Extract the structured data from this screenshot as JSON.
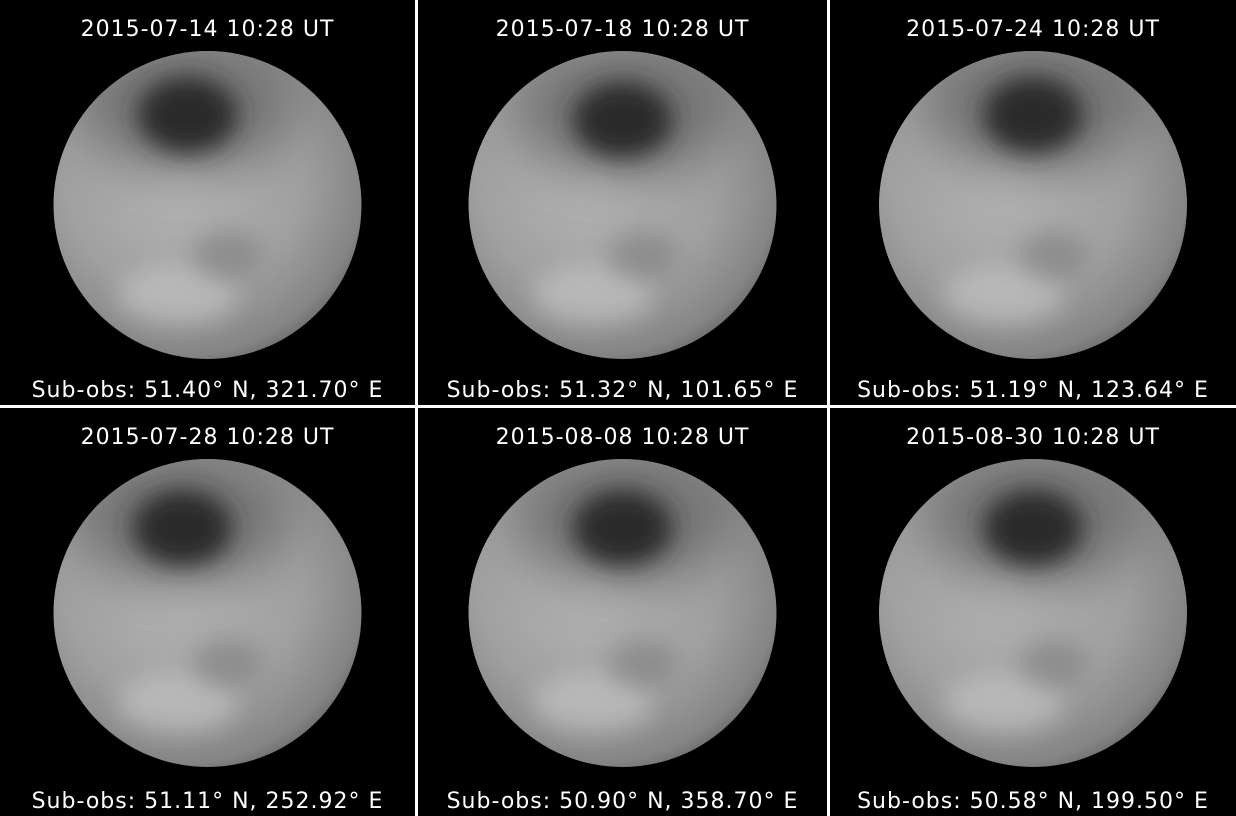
{
  "panels": [
    {
      "date": "2015-07-14 10:28 UT",
      "subobs": "Sub-obs: 51.40° N, 321.70° E"
    },
    {
      "date": "2015-07-18 10:28 UT",
      "subobs": "Sub-obs: 51.32° N, 101.65° E"
    },
    {
      "date": "2015-07-24 10:28 UT",
      "subobs": "Sub-obs: 51.19° N, 123.64° E"
    },
    {
      "date": "2015-07-28 10:28 UT",
      "subobs": "Sub-obs: 51.11° N, 252.92° E"
    },
    {
      "date": "2015-08-08 10:28 UT",
      "subobs": "Sub-obs: 50.90° N, 358.70° E"
    },
    {
      "date": "2015-08-30 10:28 UT",
      "subobs": "Sub-obs: 50.58° N, 199.50° E"
    }
  ]
}
